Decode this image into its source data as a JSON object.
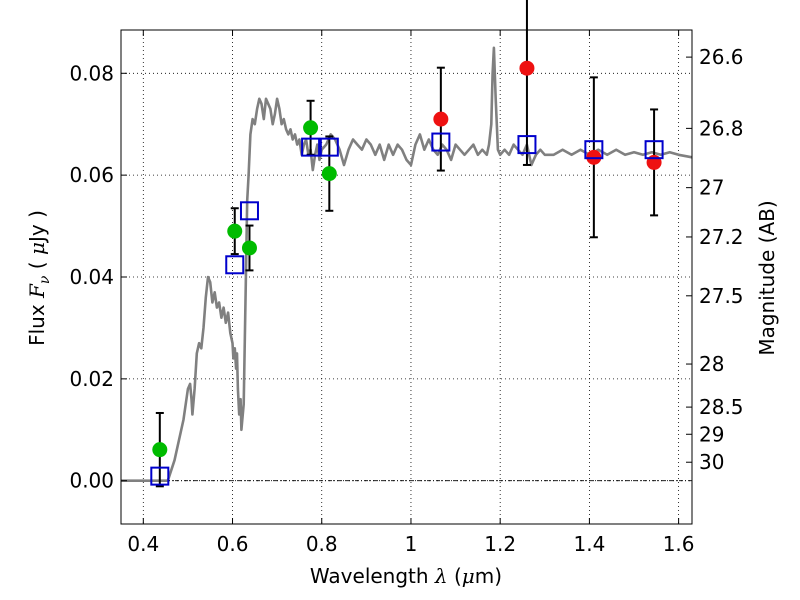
{
  "chart_data": {
    "type": "scatter",
    "xlabel_prefix": "Wavelength ",
    "xlabel_symbol": "λ",
    "xlabel_unit_open": " (",
    "xlabel_unit_symbol": "μ",
    "xlabel_unit_close": "m)",
    "ylabel_prefix": "Flux ",
    "ylabel_symbol": "F",
    "ylabel_subscript": "ν",
    "ylabel_unit_open": " ( ",
    "ylabel_unit_symbol": "μ",
    "ylabel_unit_close": "Jy )",
    "y2label": "Magnitude (AB)",
    "xlim": [
      0.35,
      1.63
    ],
    "ylim": [
      -0.0085,
      0.0885
    ],
    "grid": true,
    "x_ticks": [
      0.4,
      0.6,
      0.8,
      1.0,
      1.2,
      1.4,
      1.6
    ],
    "x_tick_labels": [
      "0.4",
      "0.6",
      "0.8",
      "1",
      "1.2",
      "1.4",
      "1.6"
    ],
    "y_ticks": [
      0.0,
      0.02,
      0.04,
      0.06,
      0.08
    ],
    "y_tick_labels": [
      "0.00",
      "0.02",
      "0.04",
      "0.06",
      "0.08"
    ],
    "mag_ticks": [
      {
        "label": "26.6",
        "mag": 26.6
      },
      {
        "label": "26.8",
        "mag": 26.8
      },
      {
        "label": "27",
        "mag": 27.0
      },
      {
        "label": "27.2",
        "mag": 27.2
      },
      {
        "label": "27.5",
        "mag": 27.5
      },
      {
        "label": "28",
        "mag": 28.0
      },
      {
        "label": "28.5",
        "mag": 28.5
      },
      {
        "label": "29",
        "mag": 29.0
      },
      {
        "label": "30",
        "mag": 30.0
      }
    ],
    "zero_line": 0.0,
    "model_spectrum": {
      "name": "model",
      "color": "#808080",
      "x": [
        0.35,
        0.455,
        0.47,
        0.49,
        0.5,
        0.505,
        0.508,
        0.51,
        0.515,
        0.52,
        0.525,
        0.53,
        0.535,
        0.54,
        0.545,
        0.55,
        0.555,
        0.56,
        0.565,
        0.57,
        0.575,
        0.58,
        0.585,
        0.59,
        0.595,
        0.6,
        0.602,
        0.605,
        0.608,
        0.61,
        0.612,
        0.615,
        0.618,
        0.62,
        0.625,
        0.63,
        0.633,
        0.636,
        0.64,
        0.645,
        0.65,
        0.655,
        0.66,
        0.665,
        0.67,
        0.675,
        0.68,
        0.685,
        0.69,
        0.695,
        0.7,
        0.705,
        0.71,
        0.715,
        0.72,
        0.725,
        0.73,
        0.735,
        0.74,
        0.745,
        0.75,
        0.755,
        0.76,
        0.765,
        0.77,
        0.775,
        0.78,
        0.785,
        0.79,
        0.795,
        0.8,
        0.81,
        0.82,
        0.83,
        0.84,
        0.85,
        0.86,
        0.87,
        0.88,
        0.89,
        0.9,
        0.91,
        0.92,
        0.93,
        0.94,
        0.95,
        0.96,
        0.97,
        0.98,
        0.99,
        1.0,
        1.01,
        1.02,
        1.03,
        1.04,
        1.05,
        1.06,
        1.07,
        1.08,
        1.09,
        1.1,
        1.11,
        1.12,
        1.13,
        1.14,
        1.15,
        1.16,
        1.17,
        1.175,
        1.18,
        1.183,
        1.186,
        1.19,
        1.195,
        1.2,
        1.21,
        1.22,
        1.23,
        1.24,
        1.25,
        1.26,
        1.27,
        1.28,
        1.29,
        1.3,
        1.32,
        1.34,
        1.36,
        1.38,
        1.4,
        1.42,
        1.44,
        1.46,
        1.48,
        1.5,
        1.52,
        1.54,
        1.56,
        1.58,
        1.6,
        1.63
      ],
      "y": [
        0.0,
        0.0,
        0.004,
        0.012,
        0.018,
        0.019,
        0.016,
        0.013,
        0.018,
        0.025,
        0.027,
        0.026,
        0.03,
        0.036,
        0.04,
        0.039,
        0.035,
        0.037,
        0.034,
        0.035,
        0.032,
        0.034,
        0.031,
        0.033,
        0.029,
        0.027,
        0.024,
        0.026,
        0.022,
        0.025,
        0.018,
        0.013,
        0.016,
        0.01,
        0.015,
        0.04,
        0.055,
        0.06,
        0.068,
        0.071,
        0.07,
        0.073,
        0.075,
        0.074,
        0.071,
        0.075,
        0.074,
        0.073,
        0.07,
        0.072,
        0.075,
        0.073,
        0.07,
        0.071,
        0.069,
        0.068,
        0.069,
        0.067,
        0.068,
        0.066,
        0.067,
        0.064,
        0.066,
        0.067,
        0.064,
        0.065,
        0.061,
        0.064,
        0.066,
        0.063,
        0.065,
        0.066,
        0.068,
        0.067,
        0.065,
        0.062,
        0.065,
        0.067,
        0.066,
        0.065,
        0.067,
        0.066,
        0.064,
        0.066,
        0.063,
        0.066,
        0.064,
        0.066,
        0.065,
        0.063,
        0.062,
        0.066,
        0.068,
        0.065,
        0.067,
        0.065,
        0.064,
        0.066,
        0.065,
        0.063,
        0.066,
        0.065,
        0.064,
        0.065,
        0.066,
        0.064,
        0.065,
        0.064,
        0.066,
        0.07,
        0.08,
        0.085,
        0.075,
        0.065,
        0.064,
        0.065,
        0.064,
        0.066,
        0.065,
        0.064,
        0.066,
        0.062,
        0.064,
        0.065,
        0.064,
        0.064,
        0.065,
        0.064,
        0.065,
        0.064,
        0.065,
        0.064,
        0.065,
        0.064,
        0.0645,
        0.064,
        0.0645,
        0.064,
        0.0645,
        0.064,
        0.0635
      ]
    },
    "series": [
      {
        "name": "green",
        "color": "#00bb00",
        "marker": "circle",
        "points": [
          {
            "x": 0.437,
            "y": 0.0061,
            "err": 0.0072
          },
          {
            "x": 0.605,
            "y": 0.049,
            "err": 0.0045
          },
          {
            "x": 0.638,
            "y": 0.0457,
            "err": 0.0044
          },
          {
            "x": 0.775,
            "y": 0.0693,
            "err": 0.0053
          },
          {
            "x": 0.817,
            "y": 0.0603,
            "err": 0.0073
          }
        ]
      },
      {
        "name": "red",
        "color": "#ee1111",
        "marker": "circle",
        "points": [
          {
            "x": 1.067,
            "y": 0.071,
            "err": 0.0101
          },
          {
            "x": 1.26,
            "y": 0.081,
            "err": 0.019
          },
          {
            "x": 1.41,
            "y": 0.0635,
            "err": 0.0157
          },
          {
            "x": 1.545,
            "y": 0.0625,
            "err": 0.0104
          }
        ]
      },
      {
        "name": "blue",
        "color": "#0000cc",
        "marker": "square",
        "points": [
          {
            "x": 0.437,
            "y": 0.0009
          },
          {
            "x": 0.605,
            "y": 0.0424
          },
          {
            "x": 0.638,
            "y": 0.053
          },
          {
            "x": 0.775,
            "y": 0.0655
          },
          {
            "x": 0.817,
            "y": 0.0655
          },
          {
            "x": 1.067,
            "y": 0.0665
          },
          {
            "x": 1.26,
            "y": 0.066
          },
          {
            "x": 1.41,
            "y": 0.065
          },
          {
            "x": 1.545,
            "y": 0.065
          }
        ]
      }
    ]
  }
}
